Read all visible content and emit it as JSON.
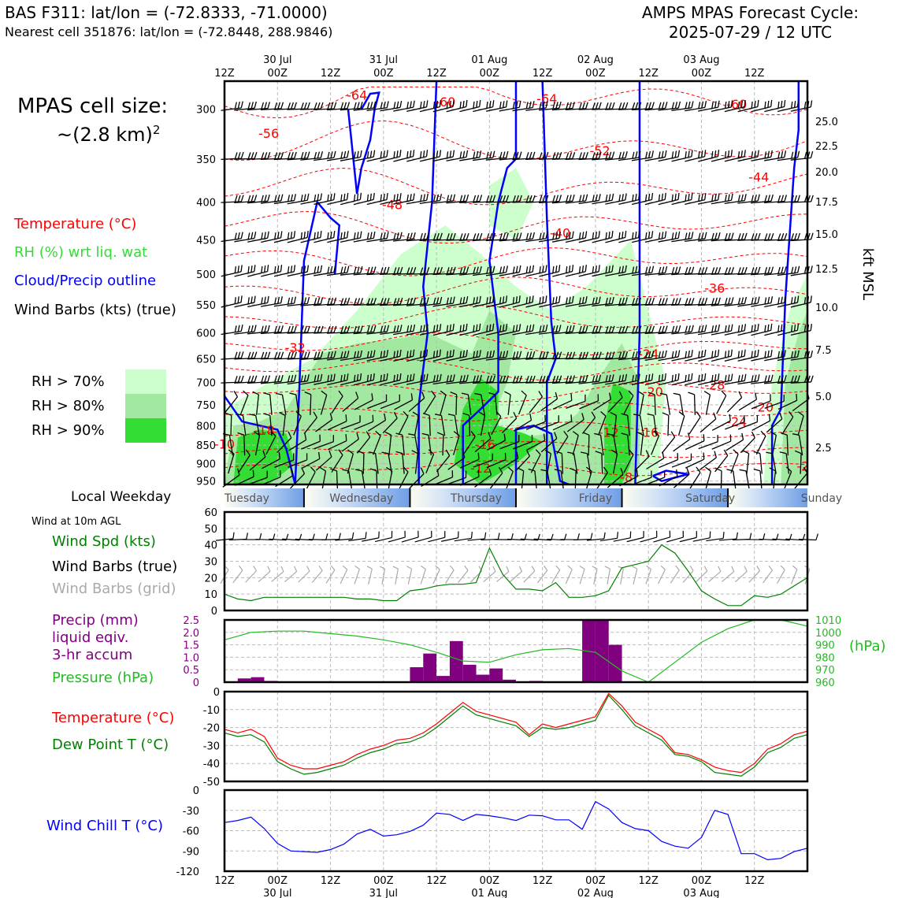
{
  "header": {
    "title_left_1": "BAS F311: lat/lon = (-72.8333, -71.0000)",
    "title_left_2": "Nearest cell 351876: lat/lon = (-72.8448, 288.9846)",
    "title_right_1": "AMPS MPAS Forecast Cycle:",
    "title_right_2": "2025-07-29 / 12 UTC"
  },
  "cell_size": {
    "line1": "MPAS cell size:",
    "line2": "~(2.8 km)",
    "sup": "2"
  },
  "legend": {
    "temperature": "Temperature (°C)",
    "rh": "RH (%) wrt liq. wat",
    "cloud": "Cloud/Precip outline",
    "wind": "Wind Barbs (kts) (true)",
    "rh_levels": [
      {
        "label": "RH > 70%",
        "color": "#ccffcc"
      },
      {
        "label": "RH > 80%",
        "color": "#a3e8a0"
      },
      {
        "label": "RH > 90%",
        "color": "#33dd33"
      }
    ]
  },
  "colors": {
    "temperature": "#ff0000",
    "dewpoint": "#008000",
    "cloud": "#0000ff",
    "windchill": "#0000ff",
    "precip": "#800080",
    "pressure": "#22bb22",
    "barb_grid": "#aaaaaa"
  },
  "time_axis": {
    "hours": [
      "12Z",
      "00Z",
      "12Z",
      "00Z",
      "12Z",
      "00Z",
      "12Z",
      "00Z",
      "12Z",
      "00Z",
      "12Z"
    ],
    "dates": [
      "30 Jul",
      "31 Jul",
      "01 Aug",
      "02 Aug",
      "03 Aug"
    ]
  },
  "weekday": {
    "label": "Local Weekday",
    "days": [
      "Tuesday",
      "Wednesday",
      "Thursday",
      "Friday",
      "Saturday",
      "Sunday"
    ]
  },
  "panel_labels": {
    "wind10m": "Wind at 10m AGL",
    "wind_spd": "Wind Spd (kts)",
    "wind_barbs": "Wind Barbs (true)",
    "wind_barbs_grid": "Wind Barbs (grid)",
    "precip_1": "Precip (mm)",
    "precip_2": "liquid eqiv.",
    "precip_3": "3-hr accum",
    "pressure": "Pressure (hPa)",
    "pressure_unit": "(hPa)",
    "temperature": "Temperature (°C)",
    "dewpoint": "Dew Point T (°C)",
    "windchill": "Wind Chill T (°C)"
  },
  "chart_data": [
    {
      "type": "heatmap",
      "name": "cross-section",
      "x_hours": [
        0,
        132
      ],
      "y_pressure_hpa": [
        960,
        275
      ],
      "pressure_ticks": [
        300,
        350,
        400,
        450,
        500,
        550,
        600,
        650,
        700,
        750,
        800,
        850,
        900,
        950
      ],
      "height_ticks_kft": [
        "25.0",
        "22.5",
        "20.0",
        "17.5",
        "15.0",
        "12.5",
        "10.0",
        "7.5",
        "5.0",
        "2.5"
      ],
      "height_axis_label": "kft MSL",
      "temperature_contour_labels": [
        {
          "text": "-64",
          "t": 30,
          "p": 287
        },
        {
          "text": "-60",
          "t": 50,
          "p": 293
        },
        {
          "text": "-64",
          "t": 73,
          "p": 290
        },
        {
          "text": "-60",
          "t": 116,
          "p": 295
        },
        {
          "text": "-56",
          "t": 10,
          "p": 323
        },
        {
          "text": "-52",
          "t": 85,
          "p": 341
        },
        {
          "text": "-44",
          "t": 121,
          "p": 370
        },
        {
          "text": "-48",
          "t": 38,
          "p": 403
        },
        {
          "text": "-40",
          "t": 76,
          "p": 440
        },
        {
          "text": "-36",
          "t": 111,
          "p": 522
        },
        {
          "text": "-32",
          "t": 16,
          "p": 628
        },
        {
          "text": "-24",
          "t": 96,
          "p": 640
        },
        {
          "text": "-20",
          "t": 97,
          "p": 720
        },
        {
          "text": "-28",
          "t": 111,
          "p": 705
        },
        {
          "text": "-20",
          "t": 122,
          "p": 755
        },
        {
          "text": "-24",
          "t": 116,
          "p": 790
        },
        {
          "text": "-18",
          "t": 9,
          "p": 811
        },
        {
          "text": "-12",
          "t": 87,
          "p": 816
        },
        {
          "text": "-16",
          "t": 96,
          "p": 816
        },
        {
          "text": "-16",
          "t": 59,
          "p": 848
        },
        {
          "text": "-10",
          "t": 0,
          "p": 847
        },
        {
          "text": "-12",
          "t": 58,
          "p": 912
        },
        {
          "text": "-8",
          "t": 91,
          "p": 938
        },
        {
          "text": "-2",
          "t": 131,
          "p": 906
        }
      ]
    },
    {
      "type": "line",
      "name": "wind speed 10m",
      "x_hours": [
        0,
        3,
        6,
        9,
        12,
        15,
        18,
        21,
        24,
        27,
        30,
        33,
        36,
        39,
        42,
        45,
        48,
        51,
        54,
        57,
        60,
        63,
        66,
        69,
        72,
        75,
        78,
        81,
        84,
        87,
        90,
        93,
        96,
        99,
        102,
        105,
        108,
        111,
        114,
        117,
        120,
        123,
        126,
        129,
        132
      ],
      "values": [
        10,
        7,
        6,
        8,
        8,
        8,
        8,
        8,
        8,
        8,
        7,
        7,
        6,
        6,
        12,
        13,
        15,
        16,
        16,
        17,
        38,
        22,
        13,
        13,
        12,
        17,
        8,
        8,
        9,
        12,
        26,
        28,
        30,
        40,
        35,
        24,
        12,
        7,
        3,
        3,
        9,
        8,
        10,
        15,
        20
      ],
      "ylim": [
        0,
        60
      ],
      "yticks": [
        0,
        10,
        20,
        30,
        40,
        50,
        60
      ]
    },
    {
      "type": "bar",
      "name": "precip 3hr",
      "x_hours_start": [
        3,
        6,
        9,
        12,
        15,
        18,
        21,
        24,
        27,
        30,
        33,
        36,
        39,
        42,
        45,
        48,
        51,
        54,
        57,
        60,
        63,
        66,
        69,
        72,
        75,
        78,
        81,
        84,
        87,
        90,
        93,
        96
      ],
      "values": [
        0.15,
        0.2,
        0.05,
        0,
        0,
        0,
        0,
        0,
        0,
        0,
        0,
        0,
        0,
        0.6,
        1.15,
        0.25,
        1.65,
        0.7,
        0.3,
        0.55,
        0.1,
        0,
        0.05,
        0,
        0,
        0,
        2.5,
        2.5,
        1.5,
        0,
        0,
        0
      ],
      "ylim": [
        0,
        2.5
      ],
      "yticks": [
        "0",
        "0.5",
        "1.0",
        "1.5",
        "2.0",
        "2.5"
      ]
    },
    {
      "type": "line",
      "name": "pressure",
      "x_hours": [
        0,
        6,
        12,
        18,
        24,
        30,
        36,
        42,
        48,
        54,
        60,
        66,
        72,
        78,
        84,
        90,
        96,
        102,
        108,
        114,
        120,
        126,
        132
      ],
      "values": [
        994,
        1000,
        1001,
        1001,
        999,
        997,
        994,
        990,
        984,
        977,
        976,
        982,
        986,
        987,
        984,
        969,
        960,
        976,
        992,
        1003,
        1010,
        1010,
        1005
      ],
      "ylim": [
        960,
        1010
      ],
      "yticks": [
        "960",
        "970",
        "980",
        "990",
        "1000",
        "1010"
      ]
    },
    {
      "type": "line",
      "name": "temperature and dew point",
      "x_hours": [
        0,
        3,
        6,
        9,
        12,
        15,
        18,
        21,
        24,
        27,
        30,
        33,
        36,
        39,
        42,
        45,
        48,
        51,
        54,
        57,
        60,
        63,
        66,
        69,
        72,
        75,
        78,
        81,
        84,
        87,
        90,
        93,
        96,
        99,
        102,
        105,
        108,
        111,
        114,
        117,
        120,
        123,
        126,
        129,
        132
      ],
      "series": [
        {
          "name": "Temperature (°C)",
          "values": [
            -21,
            -23,
            -21,
            -25,
            -37,
            -41,
            -43,
            -43,
            -41,
            -39,
            -35,
            -32,
            -30,
            -27,
            -26,
            -23,
            -18,
            -12,
            -6,
            -11,
            -13,
            -15,
            -17,
            -24,
            -18,
            -20,
            -18,
            -16,
            -14,
            -1,
            -8,
            -17,
            -21,
            -25,
            -34,
            -35,
            -38,
            -42,
            -44,
            -45,
            -40,
            -32,
            -29,
            -24,
            -22
          ]
        },
        {
          "name": "Dew Point T (°C)",
          "values": [
            -23,
            -25,
            -24,
            -28,
            -39,
            -43,
            -46,
            -45,
            -43,
            -41,
            -37,
            -34,
            -32,
            -29,
            -28,
            -25,
            -20,
            -14,
            -8,
            -13,
            -15,
            -17,
            -19,
            -25,
            -20,
            -21,
            -20,
            -18,
            -16,
            -2,
            -10,
            -19,
            -23,
            -27,
            -35,
            -36,
            -39,
            -45,
            -46,
            -47,
            -42,
            -34,
            -31,
            -26,
            -24
          ]
        }
      ],
      "ylim": [
        -50,
        0
      ],
      "yticks": [
        "0",
        "-10",
        "-20",
        "-30",
        "-40",
        "-50"
      ]
    },
    {
      "type": "line",
      "name": "wind chill",
      "x_hours": [
        0,
        3,
        6,
        9,
        12,
        15,
        18,
        21,
        24,
        27,
        30,
        33,
        36,
        39,
        42,
        45,
        48,
        51,
        54,
        57,
        60,
        63,
        66,
        69,
        72,
        75,
        78,
        81,
        84,
        87,
        90,
        93,
        96,
        99,
        102,
        105,
        108,
        111,
        114,
        117,
        120,
        123,
        126,
        129,
        132
      ],
      "values": [
        -48,
        -45,
        -40,
        -57,
        -79,
        -90,
        -91,
        -92,
        -88,
        -80,
        -65,
        -58,
        -68,
        -66,
        -61,
        -52,
        -34,
        -36,
        -45,
        -36,
        -38,
        -41,
        -45,
        -37,
        -38,
        -44,
        -44,
        -58,
        -17,
        -28,
        -48,
        -57,
        -60,
        -76,
        -83,
        -86,
        -70,
        -30,
        -36,
        -94,
        -94,
        -103,
        -101,
        -91,
        -86
      ],
      "ylim": [
        -120,
        0
      ],
      "yticks": [
        "0",
        "-30",
        "-60",
        "-90",
        "-120"
      ]
    }
  ]
}
